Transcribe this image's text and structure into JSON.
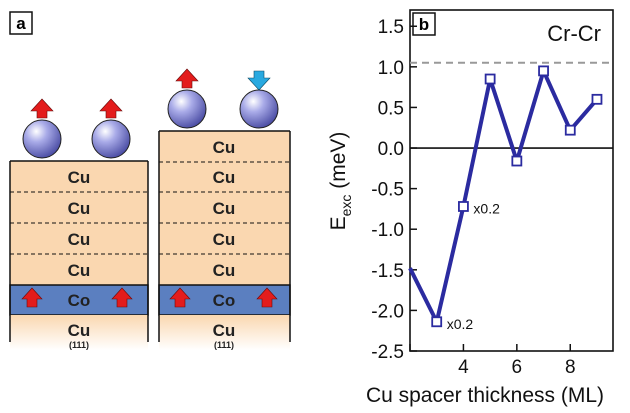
{
  "panel_a": {
    "label": "a",
    "left_stack": {
      "layers": [
        "Cu",
        "Cu",
        "Cu",
        "Cu"
      ],
      "magnet": "Co",
      "substrate": "Cu",
      "substrate_sub": "(111)"
    },
    "right_stack": {
      "layers": [
        "Cu",
        "Cu",
        "Cu",
        "Cu",
        "Cu"
      ],
      "magnet": "Co",
      "substrate": "Cu",
      "substrate_sub": "(111)"
    },
    "colors": {
      "cu_layer": "#fad7b0",
      "co_layer": "#5b7fc0",
      "arrow_up": "#e31c1c",
      "arrow_down": "#29a9e0",
      "atom": "#6f72c8"
    }
  },
  "panel_b": {
    "label": "b",
    "chart_data": {
      "type": "line",
      "title": "Cr-Cr",
      "xlabel": "Cu spacer thickness (ML)",
      "ylabel_main": "E",
      "ylabel_sub": "exc",
      "ylabel_unit": " (meV)",
      "xlim": [
        2,
        9.6
      ],
      "ylim": [
        -2.5,
        1.7
      ],
      "xticks": [
        2,
        4,
        6,
        8
      ],
      "yticks": [
        -2.5,
        -2.0,
        -1.5,
        -1.0,
        -0.5,
        0.0,
        0.5,
        1.0,
        1.5
      ],
      "ytick_labels": [
        "-2.5",
        "-2.0",
        "-1.5",
        "-1.0",
        "-0.5",
        "0.0",
        "0.5",
        "1.0",
        "1.5"
      ],
      "xtick_labels": [
        "4",
        "6",
        "8"
      ],
      "xtick_label_values": [
        4,
        6,
        8
      ],
      "series": [
        {
          "x": [
            2.0,
            3,
            4,
            5,
            6,
            7,
            8,
            9
          ],
          "y": [
            -1.48,
            -2.14,
            -0.72,
            0.85,
            -0.16,
            0.95,
            0.22,
            0.6
          ]
        }
      ],
      "markers_from_index": 1,
      "reference_line_y": 1.05,
      "zero_line_y": 0.0,
      "annotations": [
        {
          "text": "x0.2",
          "x": 3,
          "y": -2.14
        },
        {
          "text": "x0.2",
          "x": 4,
          "y": -0.72
        }
      ],
      "colors": {
        "line": "#2b2ba0",
        "marker_fill": "#ffffff",
        "reference": "#999999"
      }
    }
  }
}
